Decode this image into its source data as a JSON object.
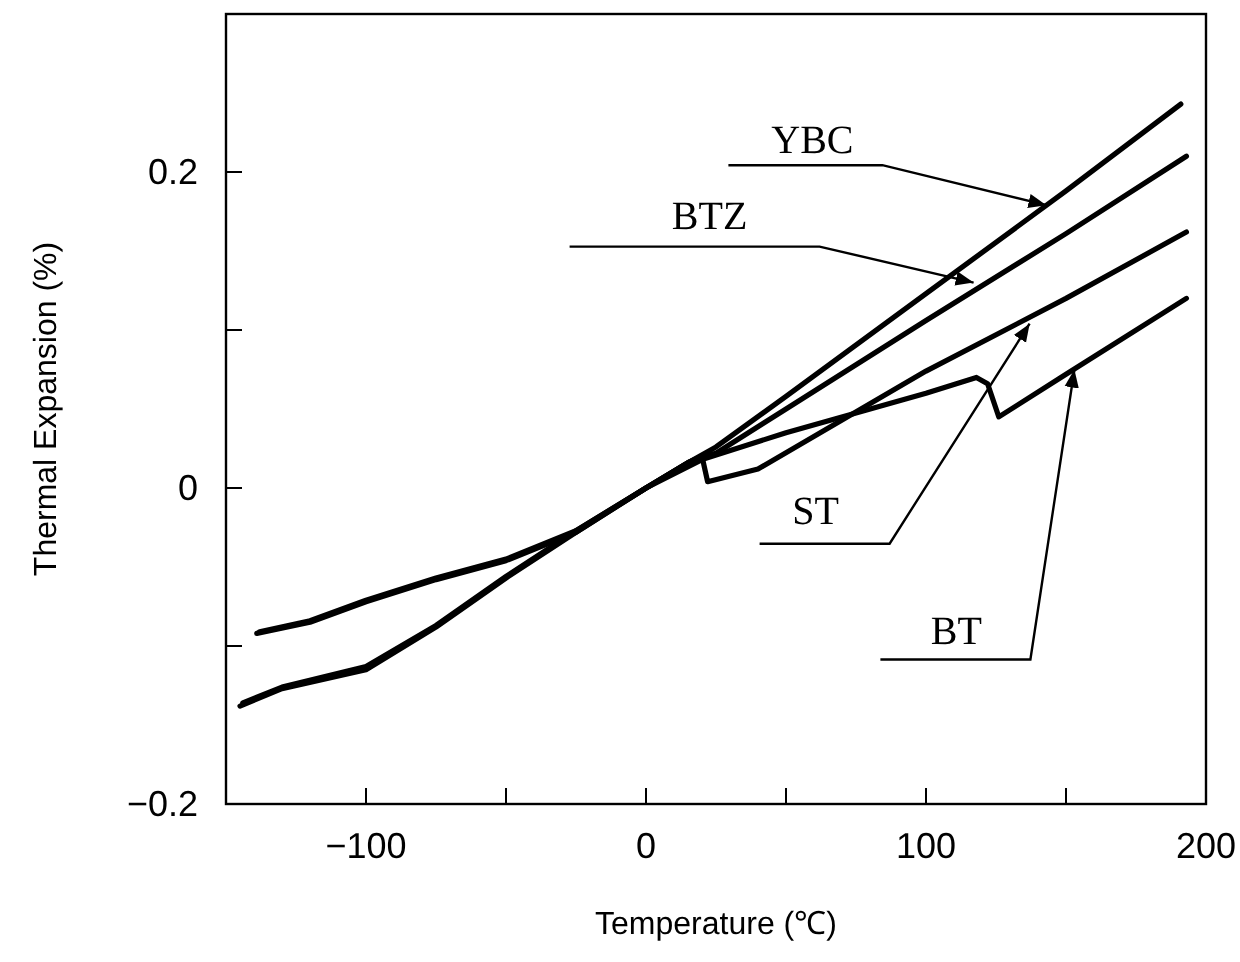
{
  "chart_data": {
    "type": "line",
    "xlabel": "Temperature (℃)",
    "ylabel": "Thermal Expansion (%)",
    "xlim": [
      -150,
      200
    ],
    "ylim": [
      -0.2,
      0.3
    ],
    "xticks": [
      {
        "value": -100,
        "label": "−100"
      },
      {
        "value": -50,
        "label": null
      },
      0,
      {
        "value": 50,
        "label": null
      },
      100,
      {
        "value": 150,
        "label": null
      },
      200
    ],
    "yticks": [
      {
        "value": -0.2,
        "label": "−0.2"
      },
      {
        "value": -0.1,
        "label": null
      },
      0,
      {
        "value": 0.1,
        "label": null
      },
      0.2
    ],
    "grid": false,
    "marker": "none",
    "line_style": "solid",
    "annotations": [
      {
        "text": "YBC",
        "x": 143,
        "y": 0.179
      },
      {
        "text": "BTZ",
        "x": 117,
        "y": 0.13
      },
      {
        "text": "ST",
        "x": 137,
        "y": 0.104
      },
      {
        "text": "BT",
        "x": 153,
        "y": 0.075
      }
    ],
    "series": [
      {
        "color": "#000000",
        "x": [
          -145,
          -130,
          -100,
          -75,
          -50,
          -25,
          0,
          15,
          25,
          50,
          100,
          150,
          191
        ],
        "values": [
          -0.138,
          -0.127,
          -0.115,
          -0.088,
          -0.057,
          -0.028,
          0,
          0.016,
          0.026,
          0.058,
          0.123,
          0.188,
          0.243
        ]
      },
      {
        "color": "#000000",
        "x": [
          -144,
          -130,
          -100,
          -75,
          -50,
          -25,
          0,
          15,
          20,
          25,
          50,
          100,
          150,
          193
        ],
        "values": [
          -0.136,
          -0.126,
          -0.113,
          -0.087,
          -0.056,
          -0.027,
          0,
          0.016,
          0.02,
          0.022,
          0.05,
          0.106,
          0.161,
          0.21
        ]
      },
      {
        "color": "#000000",
        "x": [
          -139,
          -120,
          -100,
          -75,
          -50,
          -25,
          0,
          15,
          20,
          22,
          40,
          100,
          150,
          193
        ],
        "values": [
          -0.092,
          -0.085,
          -0.072,
          -0.058,
          -0.046,
          -0.028,
          0,
          0.016,
          0.02,
          0.004,
          0.012,
          0.074,
          0.12,
          0.162
        ]
      },
      {
        "color": "#000000",
        "x": [
          -138,
          -120,
          -100,
          -75,
          -50,
          -25,
          0,
          20,
          50,
          100,
          118,
          122,
          126,
          150,
          193
        ],
        "values": [
          -0.091,
          -0.084,
          -0.071,
          -0.057,
          -0.045,
          -0.027,
          0,
          0.018,
          0.035,
          0.06,
          0.07,
          0.066,
          0.045,
          0.072,
          0.12
        ]
      }
    ]
  }
}
